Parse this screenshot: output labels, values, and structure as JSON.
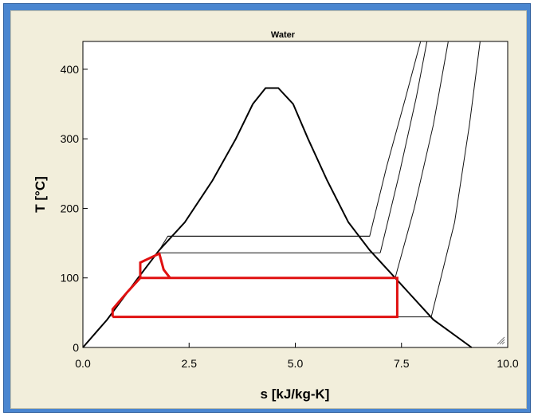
{
  "chart_data": {
    "type": "line",
    "title": "Water",
    "xlabel": "s [kJ/kg-K]",
    "ylabel": "T [°C]",
    "xlim": [
      0,
      10
    ],
    "ylim": [
      0,
      440
    ],
    "x_ticks": [
      "0.0",
      "2.5",
      "5.0",
      "7.5",
      "10.0"
    ],
    "y_ticks": [
      "0",
      "100",
      "200",
      "300",
      "400"
    ],
    "grid": false,
    "series": [
      {
        "role": "saturation-dome",
        "style": "thick-black",
        "points": [
          [
            0,
            0
          ],
          [
            0.57,
            40
          ],
          [
            1.3,
            100
          ],
          [
            1.8,
            140
          ],
          [
            2.4,
            180
          ],
          [
            3.05,
            240
          ],
          [
            3.6,
            300
          ],
          [
            4.0,
            350
          ],
          [
            4.3,
            373
          ],
          [
            4.6,
            373
          ],
          [
            4.95,
            350
          ],
          [
            5.3,
            300
          ],
          [
            5.75,
            240
          ],
          [
            6.25,
            180
          ],
          [
            6.75,
            140
          ],
          [
            7.35,
            100
          ],
          [
            8.25,
            40
          ],
          [
            9.15,
            0
          ]
        ]
      },
      {
        "role": "horizontal-tie-line",
        "style": "thin-black",
        "points": [
          [
            2.0,
            160
          ],
          [
            6.75,
            160
          ]
        ]
      },
      {
        "role": "horizontal-tie-line",
        "style": "thin-black",
        "points": [
          [
            1.8,
            136
          ],
          [
            7.0,
            136
          ]
        ]
      },
      {
        "role": "horizontal-tie-line",
        "style": "thin-black",
        "points": [
          [
            7.35,
            44
          ],
          [
            8.2,
            44
          ]
        ]
      },
      {
        "role": "isobar-superheated",
        "style": "thin-black",
        "points": [
          [
            1.55,
            120
          ],
          [
            1.8,
            140
          ],
          [
            2.0,
            160
          ],
          [
            6.75,
            160
          ],
          [
            7.15,
            260
          ],
          [
            7.6,
            360
          ],
          [
            7.95,
            440
          ]
        ]
      },
      {
        "role": "isobar-superheated",
        "style": "thin-black",
        "points": [
          [
            7.0,
            136
          ],
          [
            7.45,
            250
          ],
          [
            7.85,
            360
          ],
          [
            8.1,
            440
          ]
        ]
      },
      {
        "role": "isobar-superheated",
        "style": "thin-black",
        "points": [
          [
            7.35,
            100
          ],
          [
            7.8,
            200
          ],
          [
            8.25,
            320
          ],
          [
            8.6,
            440
          ]
        ]
      },
      {
        "role": "isobar-superheated",
        "style": "thin-black",
        "points": [
          [
            8.2,
            44
          ],
          [
            8.75,
            180
          ],
          [
            9.1,
            320
          ],
          [
            9.35,
            440
          ]
        ]
      },
      {
        "role": "annotation-cycle",
        "style": "red",
        "points": [
          [
            0.7,
            44
          ],
          [
            0.7,
            55
          ],
          [
            1.05,
            80
          ],
          [
            1.35,
            100
          ],
          [
            7.4,
            100
          ],
          [
            7.4,
            44
          ],
          [
            0.7,
            44
          ]
        ]
      },
      {
        "role": "annotation-cycle",
        "style": "red",
        "points": [
          [
            1.35,
            100
          ],
          [
            1.35,
            122
          ],
          [
            1.8,
            135
          ],
          [
            1.9,
            112
          ],
          [
            2.05,
            100
          ]
        ]
      }
    ]
  }
}
